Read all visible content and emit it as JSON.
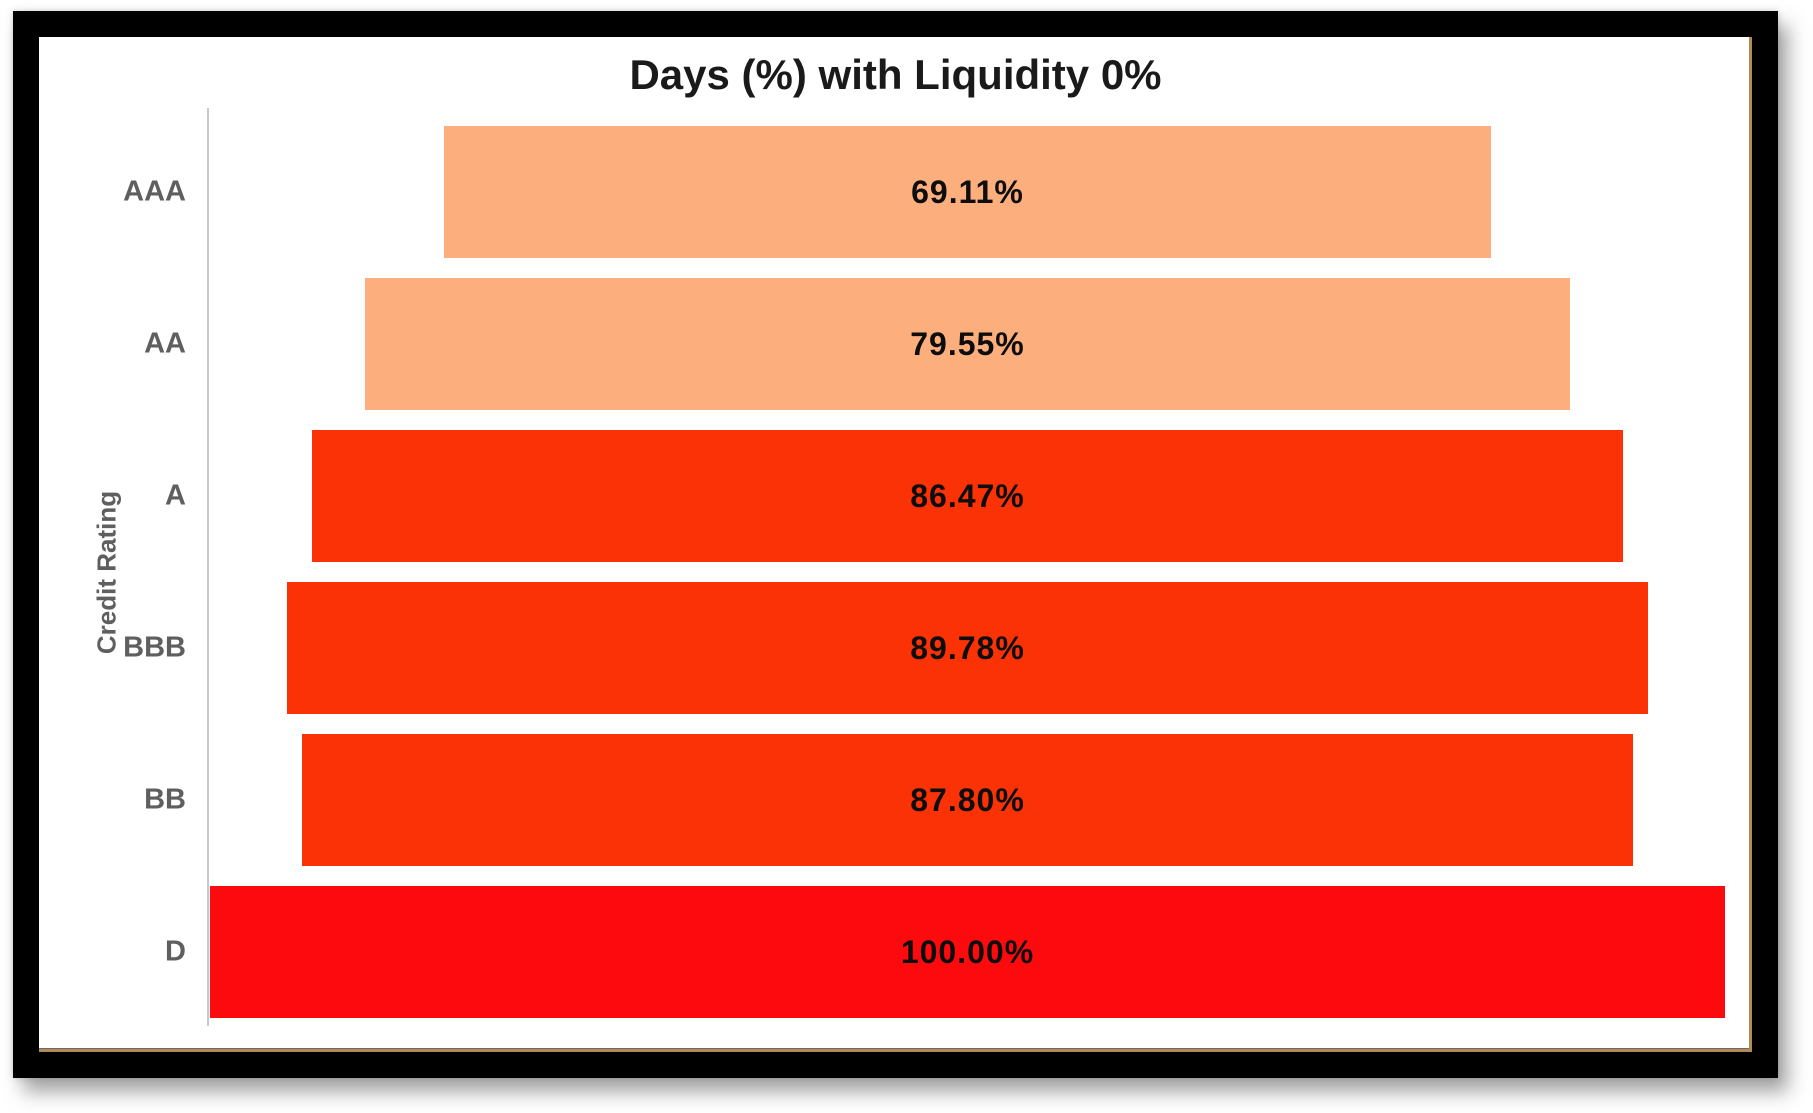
{
  "chart": {
    "title": "Days (%) with Liquidity 0%",
    "y_axis_label": "Credit Rating"
  },
  "chart_data": {
    "type": "bar",
    "subtype": "centered-funnel",
    "orientation": "horizontal",
    "title": "Days (%) with Liquidity 0%",
    "xlabel": "",
    "ylabel": "Credit Rating",
    "categories": [
      "AAA",
      "AA",
      "A",
      "BBB",
      "BB",
      "D"
    ],
    "values": [
      69.11,
      79.55,
      86.47,
      89.78,
      87.8,
      100.0
    ],
    "value_labels": [
      "69.11%",
      "79.55%",
      "86.47%",
      "89.78%",
      "87.80%",
      "100.00%"
    ],
    "bar_colors": [
      "#FCAE7C",
      "#FCAE7C",
      "#FA3205",
      "#FA3205",
      "#FA3205",
      "#FC0A0E"
    ],
    "xlim": [
      0,
      100
    ],
    "grid": false,
    "legend": false,
    "bar_label_position": "center",
    "title_color": "#1A1A1A",
    "value_label_color": "#0D0D0D",
    "category_label_color": "#5F5F5F",
    "axis_line_color": "#C9C9C9",
    "frame_color": "#000000",
    "frame_inner_edge_color": "#B08B57"
  }
}
